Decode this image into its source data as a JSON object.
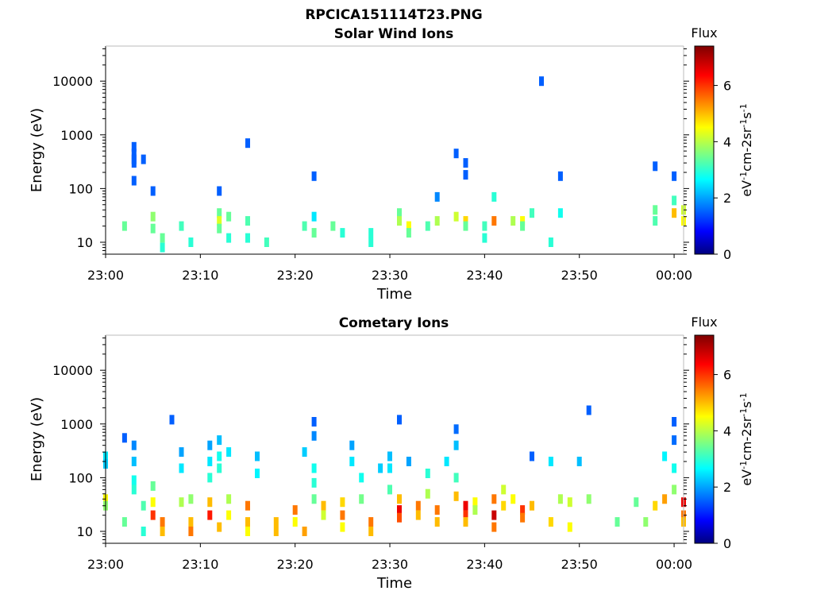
{
  "figure": {
    "filename": "RPCICA151114T23.PNG"
  },
  "colors": {
    "colormap": [
      "#00007f",
      "#0000ff",
      "#007fff",
      "#00ffff",
      "#7fff7f",
      "#ffff00",
      "#ff7f00",
      "#ff0000",
      "#7f0000"
    ]
  },
  "chart_data": [
    {
      "type": "heatmap",
      "title": "Solar Wind Ions",
      "xlabel": "Time",
      "ylabel": "Energy (eV)",
      "xlim": [
        "23:00",
        "00:01"
      ],
      "ylim": [
        6,
        45000
      ],
      "log_y": true,
      "x_ticks": [
        "23:00",
        "23:10",
        "23:20",
        "23:30",
        "23:40",
        "23:50",
        "00:00"
      ],
      "y_ticks": [
        "10",
        "100",
        "1000",
        "10000"
      ],
      "colorbar": {
        "title": "Flux",
        "label": "eV-1cm-2sr-1s-1",
        "range": [
          0,
          7.4
        ],
        "ticks": [
          "0",
          "2",
          "4",
          "6"
        ]
      },
      "cells": [
        [
          "23:02",
          20,
          3.5
        ],
        [
          "23:03",
          600,
          1.5
        ],
        [
          "23:03",
          450,
          1.5
        ],
        [
          "23:03",
          350,
          1.5
        ],
        [
          "23:03",
          300,
          1.5
        ],
        [
          "23:04",
          350,
          1.5
        ],
        [
          "23:03",
          140,
          1.5
        ],
        [
          "23:05",
          90,
          1.5
        ],
        [
          "23:05",
          30,
          3.8
        ],
        [
          "23:05",
          18,
          3.5
        ],
        [
          "23:06",
          12,
          3.5
        ],
        [
          "23:06",
          8,
          3.0
        ],
        [
          "23:08",
          20,
          3.2
        ],
        [
          "23:09",
          10,
          3.0
        ],
        [
          "23:12",
          90,
          1.5
        ],
        [
          "23:12",
          35,
          3.5
        ],
        [
          "23:12",
          25,
          4.3
        ],
        [
          "23:12",
          18,
          3.5
        ],
        [
          "23:13",
          30,
          3.5
        ],
        [
          "23:13",
          12,
          3.0
        ],
        [
          "23:15",
          700,
          1.5
        ],
        [
          "23:15",
          25,
          3.3
        ],
        [
          "23:15",
          12,
          3.0
        ],
        [
          "23:17",
          10,
          3.2
        ],
        [
          "23:22",
          170,
          1.5
        ],
        [
          "23:21",
          20,
          3.3
        ],
        [
          "23:22",
          30,
          2.5
        ],
        [
          "23:22",
          15,
          3.5
        ],
        [
          "23:24",
          20,
          3.5
        ],
        [
          "23:25",
          15,
          3.0
        ],
        [
          "23:28",
          15,
          3.0
        ],
        [
          "23:28",
          10,
          3.0
        ],
        [
          "23:31",
          35,
          3.5
        ],
        [
          "23:31",
          25,
          4.0
        ],
        [
          "23:32",
          20,
          4.5
        ],
        [
          "23:32",
          15,
          3.5
        ],
        [
          "23:34",
          20,
          3.3
        ],
        [
          "23:35",
          25,
          4.0
        ],
        [
          "23:35",
          70,
          1.8
        ],
        [
          "23:37",
          450,
          1.5
        ],
        [
          "23:38",
          300,
          1.5
        ],
        [
          "23:38",
          180,
          1.5
        ],
        [
          "23:37",
          30,
          4.2
        ],
        [
          "23:38",
          25,
          4.8
        ],
        [
          "23:38",
          20,
          3.5
        ],
        [
          "23:40",
          20,
          3.2
        ],
        [
          "23:40",
          12,
          3.0
        ],
        [
          "23:41",
          25,
          5.5
        ],
        [
          "23:41",
          70,
          3.0
        ],
        [
          "23:43",
          25,
          4.0
        ],
        [
          "23:44",
          25,
          4.5
        ],
        [
          "23:44",
          20,
          3.5
        ],
        [
          "23:45",
          35,
          3.2
        ],
        [
          "23:46",
          10000,
          1.5
        ],
        [
          "23:47",
          10,
          3.0
        ],
        [
          "23:48",
          35,
          2.8
        ],
        [
          "23:48",
          170,
          1.5
        ],
        [
          "23:58",
          260,
          1.5
        ],
        [
          "23:58",
          40,
          3.5
        ],
        [
          "23:58",
          25,
          3.3
        ],
        [
          "00:00",
          170,
          1.5
        ],
        [
          "00:00",
          60,
          3.2
        ],
        [
          "00:00",
          35,
          5.0
        ],
        [
          "00:01",
          25,
          4.5
        ],
        [
          "00:01",
          40,
          4.2
        ]
      ]
    },
    {
      "type": "heatmap",
      "title": "Cometary Ions",
      "xlabel": "Time",
      "ylabel": "Energy (eV)",
      "xlim": [
        "23:00",
        "00:01"
      ],
      "ylim": [
        6,
        45000
      ],
      "log_y": true,
      "x_ticks": [
        "23:00",
        "23:10",
        "23:20",
        "23:30",
        "23:40",
        "23:50",
        "00:00"
      ],
      "y_ticks": [
        "10",
        "100",
        "1000",
        "10000"
      ],
      "colorbar": {
        "title": "Flux",
        "label": "eV-1cm-2sr-1s-1",
        "range": [
          0,
          7.4
        ],
        "ticks": [
          "0",
          "2",
          "4",
          "6"
        ]
      },
      "cells": [
        [
          "23:00",
          250,
          2.5
        ],
        [
          "23:00",
          180,
          2.3
        ],
        [
          "23:00",
          40,
          4.5
        ],
        [
          "23:00",
          30,
          3.8
        ],
        [
          "23:02",
          550,
          1.5
        ],
        [
          "23:02",
          15,
          3.5
        ],
        [
          "23:03",
          400,
          1.8
        ],
        [
          "23:03",
          200,
          2.2
        ],
        [
          "23:03",
          90,
          2.8
        ],
        [
          "23:03",
          60,
          3.0
        ],
        [
          "23:04",
          30,
          3.3
        ],
        [
          "23:04",
          10,
          3.0
        ],
        [
          "23:05",
          70,
          3.5
        ],
        [
          "23:05",
          35,
          4.5
        ],
        [
          "23:05",
          20,
          6.0
        ],
        [
          "23:06",
          15,
          5.5
        ],
        [
          "23:06",
          10,
          5.0
        ],
        [
          "23:07",
          1200,
          1.5
        ],
        [
          "23:08",
          300,
          2.0
        ],
        [
          "23:08",
          150,
          2.5
        ],
        [
          "23:08",
          35,
          4.0
        ],
        [
          "23:09",
          15,
          5.0
        ],
        [
          "23:09",
          10,
          5.5
        ],
        [
          "23:09",
          40,
          3.8
        ],
        [
          "23:11",
          400,
          2.0
        ],
        [
          "23:11",
          200,
          2.5
        ],
        [
          "23:11",
          100,
          3.0
        ],
        [
          "23:11",
          35,
          5.0
        ],
        [
          "23:11",
          20,
          6.2
        ],
        [
          "23:12",
          12,
          5.0
        ],
        [
          "23:12",
          500,
          2.2
        ],
        [
          "23:12",
          250,
          2.8
        ],
        [
          "23:12",
          150,
          3.0
        ],
        [
          "23:13",
          300,
          2.5
        ],
        [
          "23:13",
          40,
          4.0
        ],
        [
          "23:13",
          20,
          4.5
        ],
        [
          "23:15",
          30,
          5.5
        ],
        [
          "23:15",
          15,
          5.0
        ],
        [
          "23:15",
          10,
          4.5
        ],
        [
          "23:16",
          250,
          2.2
        ],
        [
          "23:16",
          120,
          2.6
        ],
        [
          "23:18",
          15,
          5.0
        ],
        [
          "23:18",
          10,
          5.0
        ],
        [
          "23:20",
          25,
          5.5
        ],
        [
          "23:20",
          15,
          4.5
        ],
        [
          "23:21",
          10,
          5.2
        ],
        [
          "23:21",
          300,
          2.3
        ],
        [
          "23:22",
          150,
          2.8
        ],
        [
          "23:22",
          80,
          3.0
        ],
        [
          "23:22",
          600,
          1.8
        ],
        [
          "23:22",
          1100,
          1.5
        ],
        [
          "23:22",
          40,
          3.5
        ],
        [
          "23:23",
          30,
          5.0
        ],
        [
          "23:23",
          20,
          4.2
        ],
        [
          "23:25",
          35,
          4.8
        ],
        [
          "23:25",
          20,
          5.5
        ],
        [
          "23:25",
          12,
          4.5
        ],
        [
          "23:26",
          400,
          2.0
        ],
        [
          "23:26",
          200,
          2.5
        ],
        [
          "23:27",
          100,
          2.8
        ],
        [
          "23:27",
          40,
          3.6
        ],
        [
          "23:28",
          15,
          5.5
        ],
        [
          "23:28",
          10,
          5.0
        ],
        [
          "23:29",
          150,
          2.3
        ],
        [
          "23:30",
          250,
          2.2
        ],
        [
          "23:30",
          150,
          2.5
        ],
        [
          "23:30",
          60,
          3.3
        ],
        [
          "23:31",
          40,
          5.0
        ],
        [
          "23:31",
          25,
          6.5
        ],
        [
          "23:31",
          18,
          5.8
        ],
        [
          "23:31",
          1200,
          1.5
        ],
        [
          "23:32",
          200,
          2.0
        ],
        [
          "23:33",
          30,
          5.5
        ],
        [
          "23:33",
          20,
          5.0
        ],
        [
          "23:34",
          120,
          3.0
        ],
        [
          "23:34",
          50,
          4.0
        ],
        [
          "23:35",
          25,
          5.5
        ],
        [
          "23:35",
          15,
          5.0
        ],
        [
          "23:36",
          200,
          2.5
        ],
        [
          "23:37",
          400,
          2.2
        ],
        [
          "23:37",
          800,
          1.6
        ],
        [
          "23:37",
          100,
          3.2
        ],
        [
          "23:37",
          45,
          5.0
        ],
        [
          "23:38",
          30,
          6.5
        ],
        [
          "23:38",
          20,
          6.0
        ],
        [
          "23:38",
          15,
          5.0
        ],
        [
          "23:39",
          35,
          4.5
        ],
        [
          "23:39",
          25,
          4.0
        ],
        [
          "23:41",
          40,
          5.5
        ],
        [
          "23:41",
          20,
          6.8
        ],
        [
          "23:41",
          12,
          5.5
        ],
        [
          "23:42",
          30,
          4.8
        ],
        [
          "23:42",
          60,
          4.2
        ],
        [
          "23:43",
          40,
          4.5
        ],
        [
          "23:44",
          25,
          6.0
        ],
        [
          "23:44",
          18,
          5.5
        ],
        [
          "23:45",
          30,
          5.0
        ],
        [
          "23:45",
          250,
          1.5
        ],
        [
          "23:47",
          200,
          2.5
        ],
        [
          "23:47",
          15,
          4.8
        ],
        [
          "23:48",
          40,
          4.0
        ],
        [
          "23:49",
          12,
          4.5
        ],
        [
          "23:49",
          35,
          4.2
        ],
        [
          "23:50",
          200,
          2.2
        ],
        [
          "23:51",
          1800,
          1.5
        ],
        [
          "23:51",
          40,
          3.8
        ],
        [
          "23:54",
          15,
          3.5
        ],
        [
          "23:56",
          35,
          3.5
        ],
        [
          "23:57",
          15,
          3.8
        ],
        [
          "23:58",
          30,
          4.8
        ],
        [
          "23:59",
          40,
          5.2
        ],
        [
          "23:59",
          250,
          2.6
        ],
        [
          "00:00",
          500,
          1.6
        ],
        [
          "00:00",
          1100,
          1.5
        ],
        [
          "00:00",
          150,
          2.8
        ],
        [
          "00:00",
          60,
          3.8
        ],
        [
          "00:01",
          35,
          6.5
        ],
        [
          "00:01",
          20,
          5.5
        ],
        [
          "00:01",
          15,
          5.0
        ]
      ]
    }
  ]
}
